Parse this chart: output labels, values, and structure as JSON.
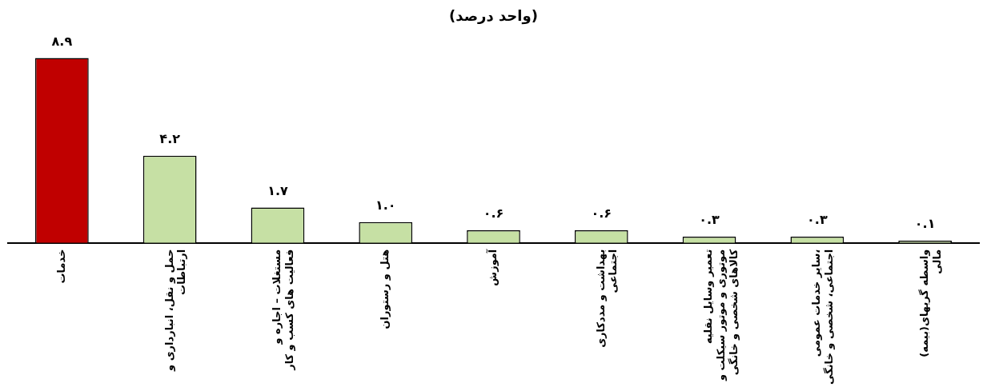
{
  "chart_data": {
    "type": "bar",
    "title": "(واحد درصد)",
    "categories": [
      "خدمات",
      "حمل و نقل، انبارداری و ارتباطات",
      "مستغلات – اجاره و فعالیت های کسب و کار",
      "هتل و رستوران",
      "آموزش",
      "بهداشت و مددکاری اجتماعی",
      "تعمیر وسایل نقلیه موتوری و موتور سیکلت و کالاهای شخصی و خانگی",
      "سایر خدمات عمومی، اجتماعی، شخصی و خانگی",
      "(بیمه)واسطه گریهای مالی"
    ],
    "values": [
      8.9,
      4.2,
      1.7,
      1.0,
      0.6,
      0.6,
      0.3,
      0.3,
      0.1
    ],
    "value_labels": [
      "۸.۹",
      "۴.۲",
      "۱.۷",
      "۱.۰",
      "۰.۶",
      "۰.۶",
      "۰.۳",
      "۰.۳",
      "۰.۱"
    ],
    "colors": [
      "#c00000",
      "#c6e0a4",
      "#c6e0a4",
      "#c6e0a4",
      "#c6e0a4",
      "#c6e0a4",
      "#c6e0a4",
      "#c6e0a4",
      "#c6e0a4"
    ],
    "tick_labels": "x",
    "grid": false,
    "legend": false
  }
}
